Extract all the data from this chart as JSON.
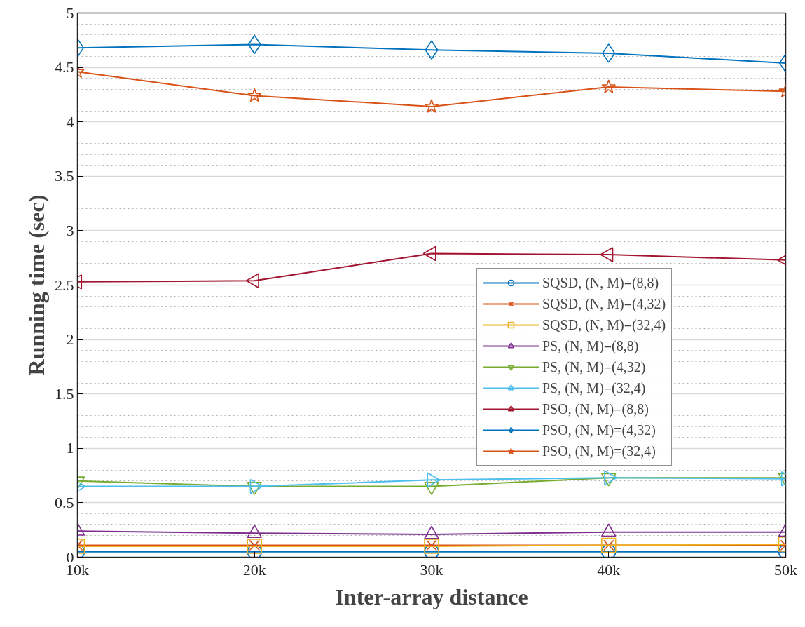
{
  "chart_data": {
    "type": "line",
    "xlabel": "Inter-array distance",
    "ylabel": "Running time (sec)",
    "x": [
      10000,
      20000,
      30000,
      40000,
      50000
    ],
    "xlim": [
      10000,
      50000
    ],
    "xticks": [
      {
        "value": 10000,
        "label": "10k"
      },
      {
        "value": 20000,
        "label": "20k"
      },
      {
        "value": 30000,
        "label": "30k"
      },
      {
        "value": 40000,
        "label": "40k"
      },
      {
        "value": 50000,
        "label": "50k"
      }
    ],
    "ylim": [
      0,
      5
    ],
    "yticks": [
      0,
      0.5,
      1,
      1.5,
      2,
      2.5,
      3,
      3.5,
      4,
      4.5,
      5
    ],
    "grid": "y",
    "legend": "right",
    "line_style": "solid",
    "series": [
      {
        "name": "SQSD, (N, M)=(8,8)",
        "color": "#0072bd",
        "marker": "circle",
        "values": [
          0.05,
          0.05,
          0.05,
          0.05,
          0.05
        ]
      },
      {
        "name": "SQSD, (N, M)=(4,32)",
        "color": "#d95319",
        "marker": "cross",
        "values": [
          0.11,
          0.11,
          0.11,
          0.11,
          0.11
        ]
      },
      {
        "name": "SQSD, (N, M)=(32,4)",
        "color": "#edb120",
        "marker": "square",
        "values": [
          0.1,
          0.1,
          0.1,
          0.11,
          0.12
        ]
      },
      {
        "name": "PS, (N, M)=(8,8)",
        "color": "#7e2f8e",
        "marker": "triangle",
        "values": [
          0.24,
          0.22,
          0.21,
          0.23,
          0.23
        ]
      },
      {
        "name": "PS, (N, M)=(4,32)",
        "color": "#77ac30",
        "marker": "triangle_down",
        "values": [
          0.7,
          0.65,
          0.65,
          0.73,
          0.73
        ]
      },
      {
        "name": "PS, (N, M)=(32,4)",
        "color": "#4dbeee",
        "marker": "triangle_right",
        "values": [
          0.65,
          0.65,
          0.71,
          0.73,
          0.72
        ]
      },
      {
        "name": "PSO, (N, M)=(8,8)",
        "color": "#a2142f",
        "marker": "triangle_left",
        "values": [
          2.53,
          2.54,
          2.79,
          2.78,
          2.73
        ]
      },
      {
        "name": "PSO, (N, M)=(4,32)",
        "color": "#0072bd",
        "marker": "diamond",
        "values": [
          4.68,
          4.71,
          4.66,
          4.63,
          4.54
        ]
      },
      {
        "name": "PSO, (N, M)=(32,4)",
        "color": "#d95319",
        "marker": "star",
        "values": [
          4.46,
          4.24,
          4.14,
          4.32,
          4.28
        ]
      }
    ]
  }
}
